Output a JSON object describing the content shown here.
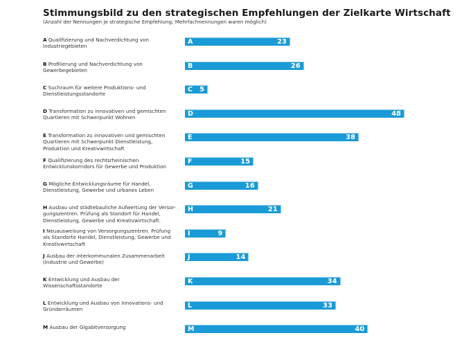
{
  "chart_data": {
    "type": "bar",
    "orientation": "horizontal",
    "title": "Stimmungsbild zu den strategischen Empfehlungen der Zielkarte Wirtschaft",
    "subtitle": "(Anzahl der Nennungen je strategische Empfehlung; Mehrfachnennungen waren möglich)",
    "xlabel": "",
    "ylabel": "",
    "xlim": [
      0,
      48
    ],
    "grid": false,
    "legend": "none",
    "bar_color": "#1a9ad6",
    "categories": [
      {
        "letter": "A",
        "text": "Qualifizierung und Nachverdichtung von Industriegebieten",
        "lines": [
          "Qualifizierung und Nachverdichtung von",
          "Industriegebieten"
        ],
        "value": 23
      },
      {
        "letter": "B",
        "text": "Profilierung und Nachverdichtung von Gewerbegebieten",
        "lines": [
          "Profilierung und Nachverdichtung von",
          "Gewerbegebieten"
        ],
        "value": 26
      },
      {
        "letter": "C",
        "text": "Suchraum für weitere Produktions- und Dienstleistungsstandorte",
        "lines": [
          "Suchraum für weitere Produktions- und",
          "Dienstleistungsstandorte"
        ],
        "value": 5
      },
      {
        "letter": "D",
        "text": "Transformation zu innovativen und gemischten Quartieren mit Schwerpunkt Wohnen",
        "lines": [
          "Transformation zu innovativen und gemischten",
          "Quartieren mit Schwerpunkt Wohnen"
        ],
        "value": 48
      },
      {
        "letter": "E",
        "text": "Transformation zu innovativen und gemischten Quartieren mit Schwerpunkt Dienstleistung, Produktion und Kreativwirtschaft",
        "lines": [
          "Transformation zu innovativen und gemischten",
          "Quartieren mit Schwerpunkt Dienstleistung,",
          "Produktion und Kreativwirtschaft"
        ],
        "value": 38
      },
      {
        "letter": "F",
        "text": "Qualifizierung des rechtsrheinischen Entwicklunskorridors für Gewerbe und Produktion",
        "lines": [
          "Qualifizierung des rechtsrheinischen",
          "Entwicklunskorridors für Gewerbe und Produktion"
        ],
        "value": 15
      },
      {
        "letter": "G",
        "text": "Mögliche Entwicklungsräume für Handel, Dienstleistung, Gewerbe und urbanes Leben",
        "lines": [
          "Mögliche Entwicklungsräume für Handel,",
          "Dienstleistung, Gewerbe und urbanes Leben"
        ],
        "value": 16
      },
      {
        "letter": "H",
        "text": "Ausbau und städtebauliche Aufwertung der Versorgungszentren. Prüfung als Standort für Handel, Dienstleistung, Gewerbe und Kreativwirtschaft.",
        "lines": [
          "Ausbau und städtebauliche Aufwertung der Versor-",
          "gungszentren. Prüfung als Standort für Handel,",
          "Dienstleistung, Gewerbe und Kreativwirtschaft."
        ],
        "value": 21
      },
      {
        "letter": "I",
        "text": "Neuausweisung von Versorgungszentren. Prüfung als Standorte Handel, Dienstleistung, Gewerbe und Kreativwirtschaft",
        "lines": [
          "Neuausweisung von Versorgungszentren. Prüfung",
          "als Standorte Handel, Dienstleistung, Gewerbe und",
          "Kreativwirtschaft"
        ],
        "value": 9
      },
      {
        "letter": "J",
        "text": "Ausbau der interkommunalen Zusammenarbeit (Industrie und Gewerbe)",
        "lines": [
          "Ausbau der interkommunalen Zusammenarbeit",
          "(Industrie und Gewerbe)"
        ],
        "value": 14
      },
      {
        "letter": "K",
        "text": "Entwicklung und Ausbau der Wissenschaftsstandorte",
        "lines": [
          "Entwicklung und Ausbau der",
          "Wissenschaftsstandorte"
        ],
        "value": 34
      },
      {
        "letter": "L",
        "text": "Entwicklung und Ausbau von Innovations- und Gründerräumen",
        "lines": [
          "Entwicklung und Ausbau von Innovations- und",
          "Gründerräumen"
        ],
        "value": 33
      },
      {
        "letter": "M",
        "text": "Ausbau der Gigabitversorgung",
        "lines": [
          "Ausbau der Gigabitversorgung"
        ],
        "value": 40
      }
    ]
  }
}
